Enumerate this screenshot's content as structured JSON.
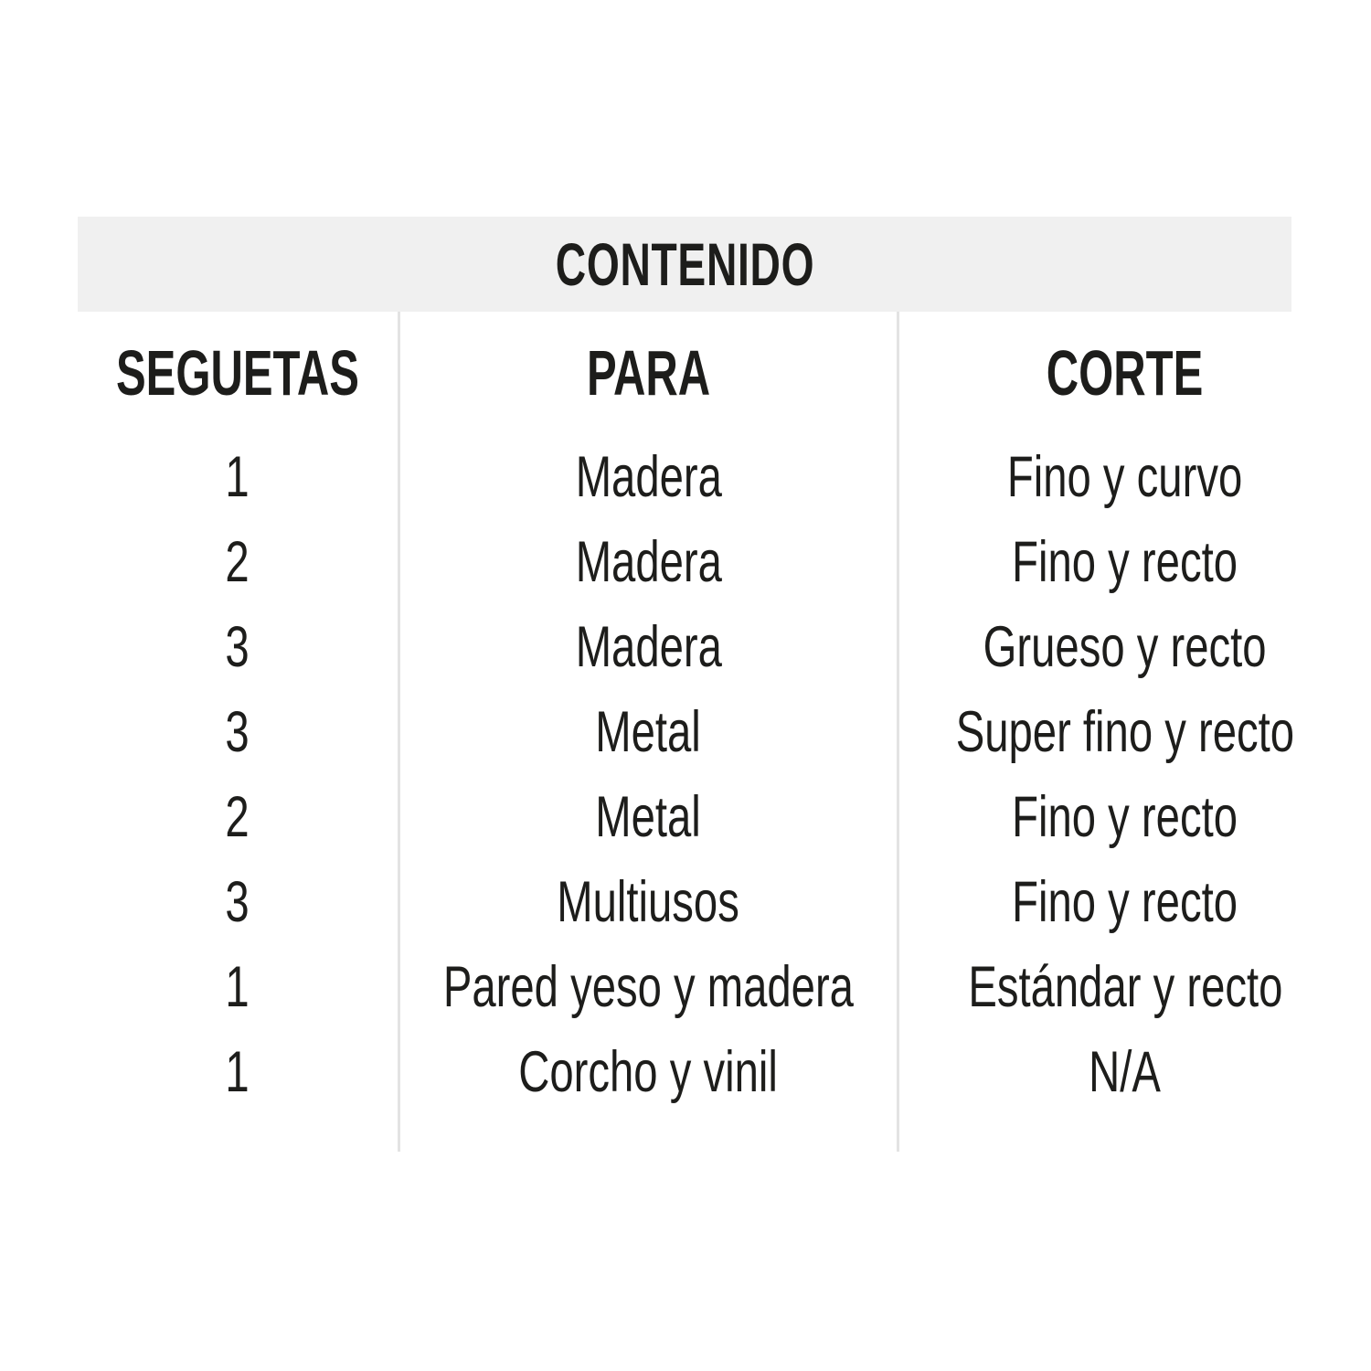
{
  "title": "CONTENIDO",
  "columns": {
    "seguetas": "SEGUETAS",
    "para": "PARA",
    "corte": "CORTE"
  },
  "rows": [
    {
      "seguetas": "1",
      "para": "Madera",
      "corte": "Fino y curvo"
    },
    {
      "seguetas": "2",
      "para": "Madera",
      "corte": "Fino y recto"
    },
    {
      "seguetas": "3",
      "para": "Madera",
      "corte": "Grueso y recto"
    },
    {
      "seguetas": "3",
      "para": "Metal",
      "corte": "Super fino y recto"
    },
    {
      "seguetas": "2",
      "para": "Metal",
      "corte": "Fino y recto"
    },
    {
      "seguetas": "3",
      "para": "Multiusos",
      "corte": "Fino y recto"
    },
    {
      "seguetas": "1",
      "para": "Pared yeso y madera",
      "corte": "Estándar y recto"
    },
    {
      "seguetas": "1",
      "para": "Corcho y vinil",
      "corte": "N/A"
    }
  ],
  "colors": {
    "band_bg": "#f0f0f0",
    "divider": "#e3e3e3",
    "text": "#1d1d1b"
  }
}
